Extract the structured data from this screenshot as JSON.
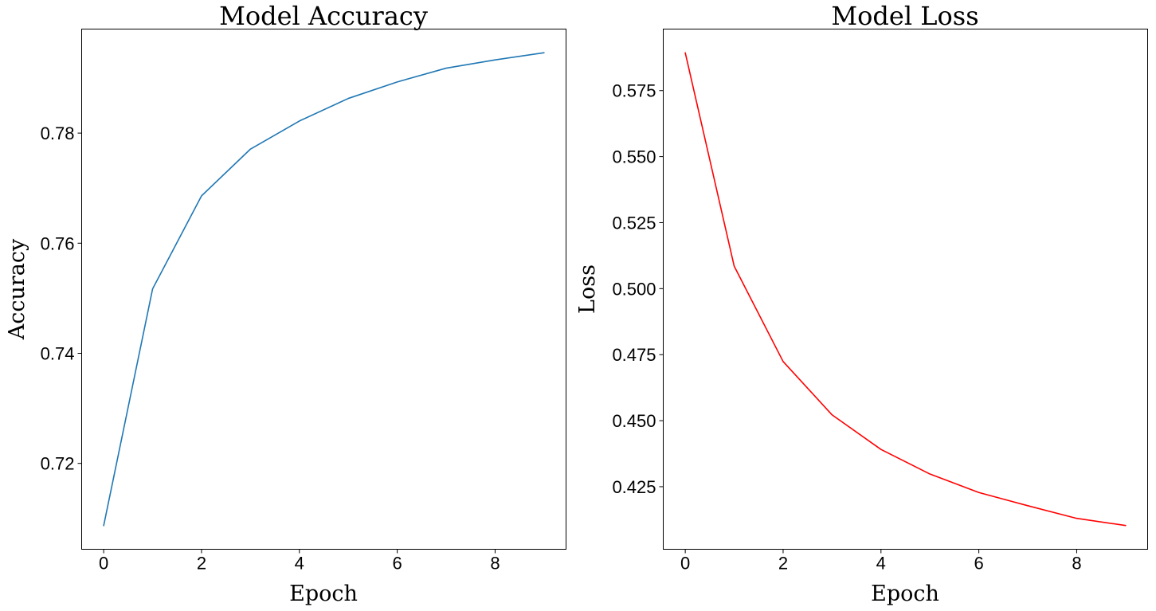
{
  "chart_data": [
    {
      "type": "line",
      "title": "Model Accuracy",
      "xlabel": "Epoch",
      "ylabel": "Accuracy",
      "x": [
        0,
        1,
        2,
        3,
        4,
        5,
        6,
        7,
        8,
        9
      ],
      "series": [
        {
          "color": "#1f77b4",
          "values": [
            0.7087,
            0.7517,
            0.7686,
            0.7771,
            0.7822,
            0.7863,
            0.7893,
            0.7918,
            0.7933,
            0.7946
          ]
        }
      ],
      "xlim": [
        -0.45,
        9.45
      ],
      "ylim": [
        0.7044,
        0.7989
      ],
      "xticks": [
        0,
        2,
        4,
        6,
        8
      ],
      "xtick_labels": [
        "0",
        "2",
        "4",
        "6",
        "8"
      ],
      "yticks": [
        0.72,
        0.74,
        0.76,
        0.78
      ],
      "ytick_labels": [
        "0.72",
        "0.74",
        "0.76",
        "0.78"
      ],
      "grid": false,
      "legend": false
    },
    {
      "type": "line",
      "title": "Model Loss",
      "xlabel": "Epoch",
      "ylabel": "Loss",
      "x": [
        0,
        1,
        2,
        3,
        4,
        5,
        6,
        7,
        8,
        9
      ],
      "series": [
        {
          "color": "#ff0000",
          "values": [
            0.5893,
            0.5085,
            0.4724,
            0.4522,
            0.4391,
            0.4298,
            0.4228,
            0.4178,
            0.413,
            0.4103
          ]
        }
      ],
      "xlim": [
        -0.45,
        9.45
      ],
      "ylim": [
        0.4013,
        0.5983
      ],
      "xticks": [
        0,
        2,
        4,
        6,
        8
      ],
      "xtick_labels": [
        "0",
        "2",
        "4",
        "6",
        "8"
      ],
      "yticks": [
        0.425,
        0.45,
        0.475,
        0.5,
        0.525,
        0.55,
        0.575
      ],
      "ytick_labels": [
        "0.425",
        "0.450",
        "0.475",
        "0.500",
        "0.525",
        "0.550",
        "0.575"
      ],
      "grid": false,
      "legend": false
    }
  ]
}
